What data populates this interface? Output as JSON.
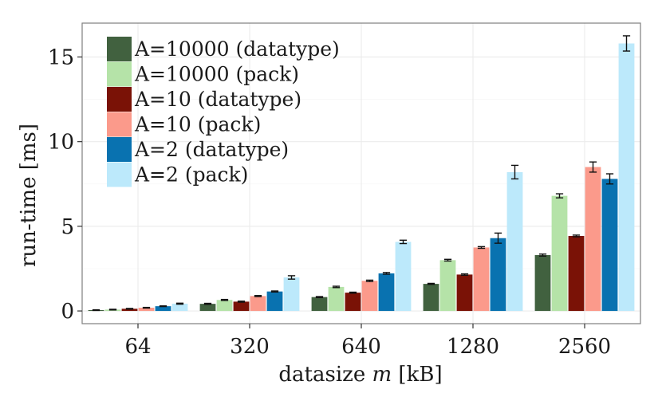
{
  "chart_data": {
    "type": "bar",
    "title": "",
    "xlabel_prefix": "datasize ",
    "xlabel_var": "m",
    "xlabel_suffix": " [kB]",
    "ylabel": "run-time [ms]",
    "ylim": [
      -0.75,
      17
    ],
    "yticks": [
      0,
      5,
      10,
      15
    ],
    "grid": true,
    "legend_position": "top-left",
    "categories": [
      "64",
      "320",
      "640",
      "1280",
      "2560"
    ],
    "series": [
      {
        "name": "A=10000 (datatype)",
        "color": "#41613f",
        "values": [
          0.05,
          0.42,
          0.82,
          1.6,
          3.3
        ],
        "err": [
          0.02,
          0.03,
          0.03,
          0.03,
          0.06
        ]
      },
      {
        "name": "A=10000 (pack)",
        "color": "#b5e3a8",
        "values": [
          0.08,
          0.65,
          1.42,
          3.0,
          6.8
        ],
        "err": [
          0.02,
          0.03,
          0.04,
          0.05,
          0.12
        ]
      },
      {
        "name": "A=10 (datatype)",
        "color": "#7a1206",
        "values": [
          0.13,
          0.55,
          1.08,
          2.15,
          4.43
        ],
        "err": [
          0.02,
          0.03,
          0.03,
          0.04,
          0.05
        ]
      },
      {
        "name": "A=10 (pack)",
        "color": "#fb9a8b",
        "values": [
          0.19,
          0.88,
          1.78,
          3.75,
          8.5
        ],
        "err": [
          0.02,
          0.03,
          0.04,
          0.05,
          0.3
        ]
      },
      {
        "name": "A=2 (datatype)",
        "color": "#0972b0",
        "values": [
          0.28,
          1.15,
          2.22,
          4.3,
          7.8
        ],
        "err": [
          0.02,
          0.03,
          0.05,
          0.3,
          0.3
        ]
      },
      {
        "name": "A=2 (pack)",
        "color": "#bce9fb",
        "values": [
          0.43,
          1.98,
          4.08,
          8.2,
          15.8
        ],
        "err": [
          0.03,
          0.1,
          0.1,
          0.4,
          0.45
        ]
      }
    ]
  }
}
